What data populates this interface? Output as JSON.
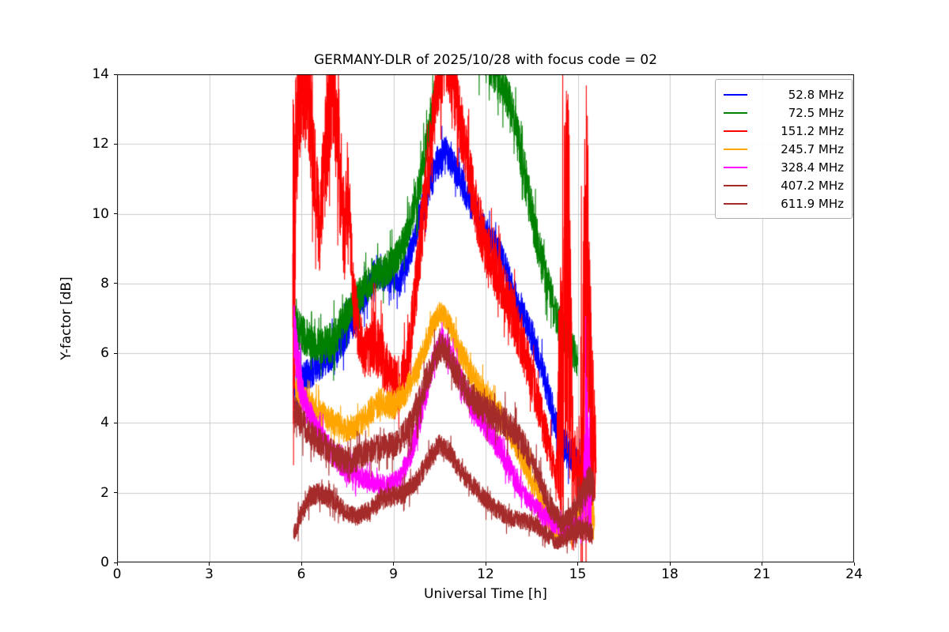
{
  "title": "GERMANY-DLR of 2025/10/28 with focus code = 02",
  "chart_data": {
    "type": "line",
    "title": "GERMANY-DLR of 2025/10/28 with focus code = 02",
    "xlabel": "Universal Time [h]",
    "ylabel": "Y-factor [dB]",
    "xlim": [
      0,
      24
    ],
    "ylim": [
      0,
      14
    ],
    "xticks": [
      0,
      3,
      6,
      9,
      12,
      15,
      18,
      21,
      24
    ],
    "xtick_labels": [
      "0",
      "3",
      "6",
      "9",
      "12",
      "15",
      "18",
      "21",
      "24"
    ],
    "yticks": [
      0,
      2,
      4,
      6,
      8,
      10,
      12,
      14
    ],
    "ytick_labels": [
      "0",
      "2",
      "4",
      "6",
      "8",
      "10",
      "12",
      "14"
    ],
    "grid": true,
    "grid_color": "#cccccc",
    "legend_position": "upper right",
    "series": [
      {
        "name": "52.8 MHz",
        "color": "#0000ff",
        "points": [
          [
            5.75,
            4.8,
            0.5
          ],
          [
            6.0,
            5.2,
            0.5
          ],
          [
            6.5,
            5.6,
            0.45
          ],
          [
            7.0,
            6.0,
            0.5
          ],
          [
            7.5,
            6.6,
            0.5
          ],
          [
            8.0,
            7.6,
            0.5
          ],
          [
            8.4,
            8.3,
            0.45
          ],
          [
            8.8,
            8.2,
            0.45
          ],
          [
            9.2,
            8.0,
            0.4
          ],
          [
            9.6,
            9.0,
            0.45
          ],
          [
            10.0,
            10.3,
            0.5
          ],
          [
            10.4,
            11.4,
            0.5
          ],
          [
            10.7,
            11.8,
            0.45
          ],
          [
            11.0,
            11.3,
            0.45
          ],
          [
            11.5,
            10.3,
            0.45
          ],
          [
            12.0,
            9.5,
            0.45
          ],
          [
            12.5,
            8.8,
            0.5
          ],
          [
            13.0,
            7.5,
            0.5
          ],
          [
            13.5,
            6.5,
            0.5
          ],
          [
            14.0,
            5.0,
            0.5
          ],
          [
            14.4,
            3.6,
            0.5
          ],
          [
            14.7,
            3.2,
            0.5
          ],
          [
            15.0,
            2.8,
            0.45
          ],
          [
            15.3,
            2.6,
            0.5
          ],
          [
            15.45,
            2.4,
            0.5
          ]
        ]
      },
      {
        "name": "72.5 MHz",
        "color": "#008000",
        "points": [
          [
            5.8,
            6.8,
            0.6
          ],
          [
            6.1,
            6.5,
            0.55
          ],
          [
            6.5,
            6.2,
            0.5
          ],
          [
            7.0,
            6.3,
            0.6
          ],
          [
            7.4,
            7.0,
            0.5
          ],
          [
            7.8,
            7.6,
            0.5
          ],
          [
            8.2,
            8.0,
            0.5
          ],
          [
            8.6,
            8.3,
            0.5
          ],
          [
            9.0,
            8.6,
            0.5
          ],
          [
            9.4,
            9.3,
            0.5
          ],
          [
            9.8,
            10.6,
            0.55
          ],
          [
            10.2,
            12.5,
            0.6
          ],
          [
            10.6,
            14.6,
            0.7
          ],
          [
            11.0,
            15.2,
            0.8
          ],
          [
            11.5,
            15.0,
            0.8
          ],
          [
            12.0,
            14.6,
            0.7
          ],
          [
            12.4,
            13.9,
            0.6
          ],
          [
            12.8,
            13.2,
            0.6
          ],
          [
            13.2,
            11.5,
            0.7
          ],
          [
            13.6,
            9.5,
            0.7
          ],
          [
            14.0,
            8.0,
            0.6
          ],
          [
            14.4,
            6.8,
            0.55
          ],
          [
            14.8,
            6.2,
            0.5
          ],
          [
            15.0,
            5.8,
            0.5
          ]
        ]
      },
      {
        "name": "151.2 MHz",
        "color": "#ff0000",
        "points": [
          [
            5.72,
            7.5,
            6.5
          ],
          [
            5.9,
            13.5,
            2.0
          ],
          [
            6.2,
            13.8,
            1.8
          ],
          [
            6.45,
            11.0,
            1.5
          ],
          [
            6.6,
            9.5,
            1.2
          ],
          [
            6.8,
            12.0,
            2.0
          ],
          [
            7.0,
            13.5,
            1.5
          ],
          [
            7.2,
            12.0,
            2.0
          ],
          [
            7.4,
            9.5,
            1.5
          ],
          [
            7.55,
            10.5,
            1.2
          ],
          [
            7.7,
            7.5,
            1.0
          ],
          [
            8.0,
            6.0,
            0.8
          ],
          [
            8.4,
            6.3,
            0.9
          ],
          [
            8.8,
            5.5,
            0.8
          ],
          [
            9.2,
            5.0,
            0.7
          ],
          [
            9.5,
            6.0,
            0.8
          ],
          [
            9.8,
            8.5,
            1.0
          ],
          [
            10.1,
            11.0,
            1.2
          ],
          [
            10.4,
            13.5,
            1.0
          ],
          [
            10.7,
            14.5,
            1.0
          ],
          [
            11.0,
            13.5,
            1.0
          ],
          [
            11.3,
            12.0,
            0.9
          ],
          [
            11.6,
            10.5,
            0.9
          ],
          [
            12.0,
            9.0,
            0.8
          ],
          [
            12.4,
            8.2,
            0.8
          ],
          [
            12.8,
            7.3,
            0.8
          ],
          [
            13.2,
            6.3,
            0.8
          ],
          [
            13.6,
            5.0,
            0.7
          ],
          [
            14.0,
            3.5,
            0.6
          ],
          [
            14.3,
            2.5,
            0.5
          ],
          [
            14.55,
            7.0,
            6.5
          ],
          [
            14.7,
            8.0,
            6.0
          ],
          [
            14.85,
            3.0,
            1.5
          ],
          [
            15.0,
            2.2,
            0.8
          ],
          [
            15.15,
            5.0,
            4.0
          ],
          [
            15.3,
            8.0,
            6.0
          ],
          [
            15.45,
            4.0,
            3.0
          ],
          [
            15.6,
            2.8,
            1.0
          ]
        ]
      },
      {
        "name": "245.7 MHz",
        "color": "#ffa500",
        "points": [
          [
            5.8,
            5.0,
            0.4
          ],
          [
            6.2,
            4.6,
            0.4
          ],
          [
            6.6,
            4.3,
            0.4
          ],
          [
            7.0,
            4.1,
            0.4
          ],
          [
            7.4,
            3.8,
            0.35
          ],
          [
            7.8,
            3.9,
            0.35
          ],
          [
            8.2,
            4.3,
            0.4
          ],
          [
            8.6,
            4.6,
            0.4
          ],
          [
            9.0,
            4.5,
            0.4
          ],
          [
            9.4,
            4.9,
            0.4
          ],
          [
            9.8,
            5.6,
            0.4
          ],
          [
            10.2,
            6.6,
            0.4
          ],
          [
            10.5,
            7.2,
            0.3
          ],
          [
            10.8,
            6.9,
            0.35
          ],
          [
            11.2,
            6.0,
            0.4
          ],
          [
            11.6,
            5.3,
            0.4
          ],
          [
            12.0,
            4.8,
            0.4
          ],
          [
            12.5,
            4.2,
            0.4
          ],
          [
            13.0,
            3.4,
            0.4
          ],
          [
            13.5,
            2.4,
            0.4
          ],
          [
            14.0,
            1.3,
            0.35
          ],
          [
            14.3,
            0.8,
            0.3
          ],
          [
            14.7,
            1.0,
            0.35
          ],
          [
            15.0,
            1.2,
            0.4
          ],
          [
            15.3,
            1.5,
            0.5
          ],
          [
            15.55,
            1.3,
            0.5
          ]
        ]
      },
      {
        "name": "328.4 MHz",
        "color": "#ff00ff",
        "points": [
          [
            5.75,
            6.8,
            0.8
          ],
          [
            5.9,
            5.5,
            0.8
          ],
          [
            6.1,
            4.6,
            0.5
          ],
          [
            6.4,
            4.0,
            0.4
          ],
          [
            6.8,
            3.4,
            0.4
          ],
          [
            7.2,
            2.9,
            0.35
          ],
          [
            7.6,
            2.6,
            0.35
          ],
          [
            8.0,
            2.4,
            0.3
          ],
          [
            8.4,
            2.3,
            0.3
          ],
          [
            8.8,
            2.2,
            0.3
          ],
          [
            9.2,
            2.4,
            0.3
          ],
          [
            9.6,
            3.2,
            0.4
          ],
          [
            10.0,
            4.6,
            0.45
          ],
          [
            10.3,
            5.8,
            0.4
          ],
          [
            10.6,
            6.5,
            0.35
          ],
          [
            10.9,
            5.9,
            0.4
          ],
          [
            11.3,
            5.0,
            0.4
          ],
          [
            11.7,
            4.3,
            0.4
          ],
          [
            12.1,
            3.8,
            0.4
          ],
          [
            12.5,
            3.2,
            0.4
          ],
          [
            12.9,
            2.5,
            0.35
          ],
          [
            13.3,
            1.9,
            0.3
          ],
          [
            13.7,
            1.5,
            0.3
          ],
          [
            14.1,
            1.2,
            0.3
          ],
          [
            14.5,
            1.0,
            0.3
          ],
          [
            14.9,
            1.0,
            0.3
          ],
          [
            15.15,
            1.2,
            0.4
          ],
          [
            15.3,
            3.5,
            3.0
          ],
          [
            15.45,
            1.0,
            0.5
          ]
        ]
      },
      {
        "name": "407.2 MHz",
        "color": "#a52a2a",
        "points": [
          [
            5.75,
            4.4,
            0.5
          ],
          [
            6.0,
            4.0,
            0.45
          ],
          [
            6.4,
            3.6,
            0.4
          ],
          [
            6.8,
            3.3,
            0.4
          ],
          [
            7.2,
            3.0,
            0.4
          ],
          [
            7.6,
            2.9,
            0.4
          ],
          [
            8.0,
            3.1,
            0.4
          ],
          [
            8.4,
            3.3,
            0.4
          ],
          [
            8.8,
            3.3,
            0.4
          ],
          [
            9.2,
            3.5,
            0.4
          ],
          [
            9.6,
            4.0,
            0.45
          ],
          [
            10.0,
            5.0,
            0.5
          ],
          [
            10.3,
            5.8,
            0.45
          ],
          [
            10.6,
            6.2,
            0.4
          ],
          [
            10.9,
            5.7,
            0.45
          ],
          [
            11.3,
            5.0,
            0.45
          ],
          [
            11.7,
            4.6,
            0.45
          ],
          [
            12.1,
            4.3,
            0.45
          ],
          [
            12.5,
            4.1,
            0.45
          ],
          [
            12.9,
            3.8,
            0.45
          ],
          [
            13.3,
            3.3,
            0.4
          ],
          [
            13.7,
            2.5,
            0.4
          ],
          [
            14.1,
            1.6,
            0.35
          ],
          [
            14.5,
            1.1,
            0.3
          ],
          [
            14.8,
            1.3,
            0.4
          ],
          [
            15.1,
            1.8,
            0.5
          ],
          [
            15.35,
            2.3,
            0.5
          ],
          [
            15.55,
            2.2,
            0.5
          ]
        ]
      },
      {
        "name": "611.9 MHz",
        "color": "#a52a2a",
        "points": [
          [
            5.75,
            0.8,
            0.25
          ],
          [
            6.0,
            1.4,
            0.3
          ],
          [
            6.3,
            1.9,
            0.3
          ],
          [
            6.6,
            2.0,
            0.3
          ],
          [
            7.0,
            1.8,
            0.3
          ],
          [
            7.4,
            1.5,
            0.3
          ],
          [
            7.8,
            1.3,
            0.25
          ],
          [
            8.2,
            1.5,
            0.3
          ],
          [
            8.6,
            1.8,
            0.3
          ],
          [
            9.0,
            1.9,
            0.3
          ],
          [
            9.4,
            2.0,
            0.3
          ],
          [
            9.8,
            2.4,
            0.3
          ],
          [
            10.2,
            3.0,
            0.35
          ],
          [
            10.5,
            3.4,
            0.3
          ],
          [
            10.8,
            3.2,
            0.3
          ],
          [
            11.2,
            2.6,
            0.3
          ],
          [
            11.6,
            2.2,
            0.3
          ],
          [
            12.0,
            1.8,
            0.3
          ],
          [
            12.4,
            1.5,
            0.3
          ],
          [
            12.8,
            1.3,
            0.25
          ],
          [
            13.2,
            1.2,
            0.25
          ],
          [
            13.6,
            1.1,
            0.25
          ],
          [
            14.0,
            0.8,
            0.25
          ],
          [
            14.3,
            0.55,
            0.2
          ],
          [
            14.6,
            0.7,
            0.25
          ],
          [
            15.0,
            1.0,
            0.3
          ],
          [
            15.3,
            0.9,
            0.3
          ],
          [
            15.5,
            0.8,
            0.3
          ]
        ]
      }
    ]
  }
}
